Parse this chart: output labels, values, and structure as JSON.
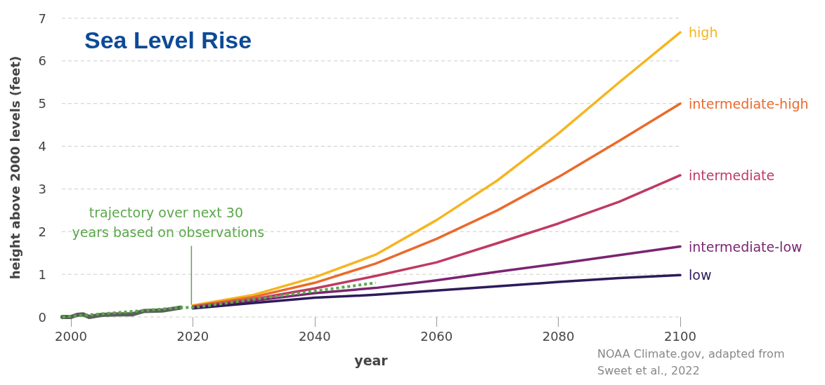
{
  "chart_data": {
    "type": "line",
    "title": "Sea Level Rise",
    "xlabel": "year",
    "ylabel": "height above 2000 levels (feet)",
    "xlim": [
      1998.5,
      2100
    ],
    "xticks": [
      2000,
      2020,
      2040,
      2060,
      2080,
      2100
    ],
    "ylim": [
      0,
      7
    ],
    "yticks": [
      0,
      1,
      2,
      3,
      4,
      5,
      6,
      7
    ],
    "grid": "y",
    "legend": false,
    "marker": "none",
    "series": [
      {
        "name": "high",
        "color": "#f6b51f",
        "x": [
          2020,
          2030,
          2040,
          2050,
          2060,
          2070,
          2080,
          2090,
          2100
        ],
        "values": [
          0.27,
          0.52,
          0.93,
          1.46,
          2.27,
          3.2,
          4.3,
          5.5,
          6.67
        ]
      },
      {
        "name": "intermediate-high",
        "color": "#ea6a2c",
        "x": [
          2020,
          2030,
          2040,
          2050,
          2060,
          2070,
          2080,
          2090,
          2100
        ],
        "values": [
          0.25,
          0.47,
          0.8,
          1.25,
          1.83,
          2.5,
          3.28,
          4.13,
          5.0
        ]
      },
      {
        "name": "intermediate",
        "color": "#bf3a62",
        "x": [
          2020,
          2030,
          2040,
          2050,
          2060,
          2070,
          2080,
          2090,
          2100
        ],
        "values": [
          0.24,
          0.42,
          0.67,
          0.96,
          1.28,
          1.73,
          2.19,
          2.7,
          3.32
        ]
      },
      {
        "name": "intermediate-low",
        "color": "#7a2571",
        "x": [
          2020,
          2030,
          2040,
          2050,
          2060,
          2070,
          2080,
          2090,
          2100
        ],
        "values": [
          0.22,
          0.38,
          0.56,
          0.68,
          0.86,
          1.06,
          1.25,
          1.45,
          1.65
        ]
      },
      {
        "name": "low",
        "color": "#2d1b5a",
        "x": [
          2020,
          2030,
          2040,
          2050,
          2060,
          2070,
          2080,
          2090,
          2100
        ],
        "values": [
          0.2,
          0.33,
          0.45,
          0.52,
          0.62,
          0.72,
          0.82,
          0.91,
          0.98
        ]
      },
      {
        "color": "#5a605a",
        "x": [
          1998.6,
          2000,
          2001,
          2002,
          2003,
          2005,
          2008,
          2010,
          2011,
          2012,
          2015,
          2018
        ],
        "values": [
          0,
          0,
          0.05,
          0.06,
          0,
          0.05,
          0.06,
          0.06,
          0.1,
          0.14,
          0.15,
          0.22
        ]
      },
      {
        "color": "#5aa84a",
        "line_style": "dotted",
        "x": [
          1998.6,
          2018,
          2020,
          2050
        ],
        "values": [
          0,
          0.22,
          0.22,
          0.8
        ]
      }
    ],
    "annotations": [
      {
        "text": "trajectory over next 30 years based on observations",
        "x": 2020,
        "y": 0.22
      },
      "NOAA Climate.gov, adapted from Sweet et al., 2022"
    ]
  }
}
